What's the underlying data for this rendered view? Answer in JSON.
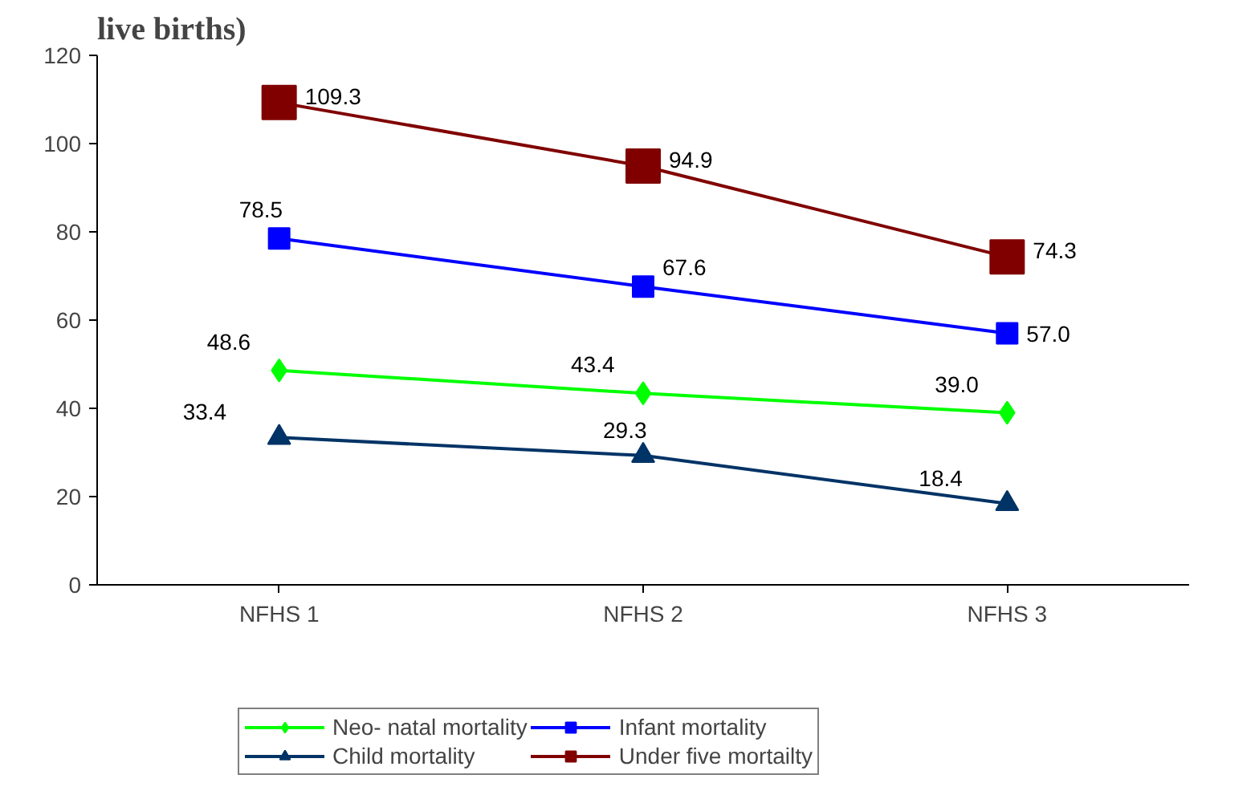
{
  "chart_data": {
    "type": "line",
    "title": "live births)",
    "categories": [
      "NFHS 1",
      "NFHS 2",
      "NFHS 3"
    ],
    "series": [
      {
        "name": "Neo- natal mortality",
        "color": "#00ff00",
        "marker": "diamond",
        "values": [
          48.6,
          43.4,
          39.0
        ],
        "value_labels": [
          "48.6",
          "43.4",
          "39.0"
        ]
      },
      {
        "name": "Infant mortality",
        "color": "#0000ff",
        "marker": "square",
        "values": [
          78.5,
          67.6,
          57.0
        ],
        "value_labels": [
          "78.5",
          "67.6",
          "57.0"
        ]
      },
      {
        "name": "Child mortality",
        "color": "#003366",
        "marker": "triangle",
        "values": [
          33.4,
          29.3,
          18.4
        ],
        "value_labels": [
          "33.4",
          "29.3",
          "18.4"
        ]
      },
      {
        "name": "Under five mortailty",
        "color": "#800000",
        "marker": "square",
        "values": [
          109.3,
          94.9,
          74.3
        ],
        "value_labels": [
          "109.3",
          "94.9",
          "74.3"
        ]
      }
    ],
    "ylim": [
      0,
      120
    ],
    "yticks": [
      0,
      20,
      40,
      60,
      80,
      100,
      120
    ],
    "grid": false,
    "legend": "bottom",
    "line_style": "solid"
  }
}
